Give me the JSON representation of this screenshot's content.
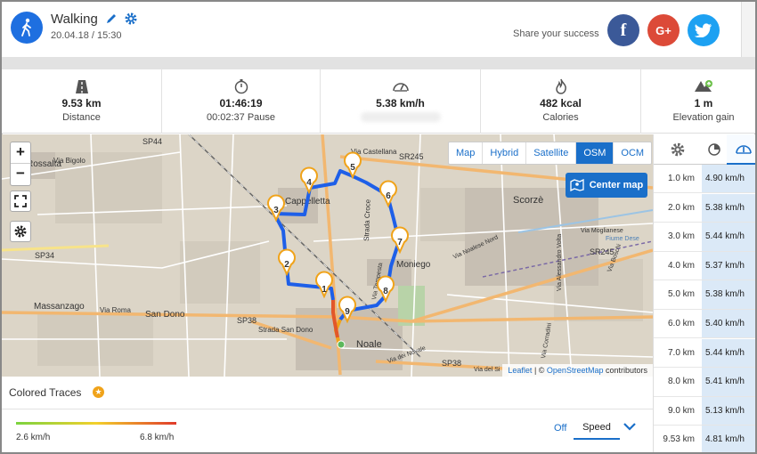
{
  "header": {
    "activity_title": "Walking",
    "datetime": "20.04.18 / 15:30",
    "share_label": "Share your success",
    "share_facebook": "f",
    "share_google": "G+"
  },
  "stats": [
    {
      "value": "9.53 km",
      "label": "Distance",
      "icon": "road-icon"
    },
    {
      "value": "01:46:19",
      "label": "00:02:37 Pause",
      "icon": "stopwatch-icon"
    },
    {
      "value": "5.38 km/h",
      "label": "",
      "icon": "speedometer-icon"
    },
    {
      "value": "482 kcal",
      "label": "Calories",
      "icon": "flame-icon"
    },
    {
      "value": "1 m",
      "label": "Elevation gain",
      "icon": "mountain-icon"
    }
  ],
  "map": {
    "zoom_in": "+",
    "zoom_out": "−",
    "layers": [
      "Map",
      "Hybrid",
      "Satellite",
      "OSM",
      "OCM"
    ],
    "active_layer": "OSM",
    "center_button": "Center map",
    "place_labels": [
      "SP44",
      "Via Bigolo",
      "Rossalta",
      "Via Castellana",
      "SR245",
      "Cappelletta",
      "Strada Croce",
      "Scorzè",
      "Via Moglianese",
      "Fiume Dese",
      "SP34",
      "Via Noalese Nord",
      "Moniego",
      "SR245",
      "Via Boschi",
      "Massanzago",
      "Via Roma",
      "San Dono",
      "SP38",
      "Strada San Dono",
      "Via Alessandro Volta",
      "Noale",
      "Via dei Novale",
      "SP38",
      "Via Corradini",
      "Via del Si",
      "Via Tempesta"
    ],
    "markers": [
      "1",
      "2",
      "3",
      "4",
      "5",
      "6",
      "7",
      "8",
      "9"
    ],
    "attribution_leaflet": "Leaflet",
    "attribution_sep": " | © ",
    "attribution_osm": "OpenStreetMap",
    "attribution_tail": " contributors"
  },
  "traces": {
    "title": "Colored Traces",
    "min_label": "2.6 km/h",
    "max_label": "6.8 km/h",
    "off_label": "Off",
    "mode_label": "Speed"
  },
  "splits": [
    {
      "km": "1.0 km",
      "speed": "4.90 km/h"
    },
    {
      "km": "2.0 km",
      "speed": "5.38 km/h"
    },
    {
      "km": "3.0 km",
      "speed": "5.44 km/h"
    },
    {
      "km": "4.0 km",
      "speed": "5.37 km/h"
    },
    {
      "km": "5.0 km",
      "speed": "5.38 km/h"
    },
    {
      "km": "6.0 km",
      "speed": "5.40 km/h"
    },
    {
      "km": "7.0 km",
      "speed": "5.44 km/h"
    },
    {
      "km": "8.0 km",
      "speed": "5.41 km/h"
    },
    {
      "km": "9.0 km",
      "speed": "5.13 km/h"
    },
    {
      "km": "9.53 km",
      "speed": "4.81 km/h"
    }
  ],
  "colors": {
    "accent": "#1a6fc9",
    "route": "#1e5fe8",
    "marker": "#f0a31a",
    "facebook": "#3b5998",
    "google": "#dc4a38",
    "twitter": "#1da1f2"
  }
}
